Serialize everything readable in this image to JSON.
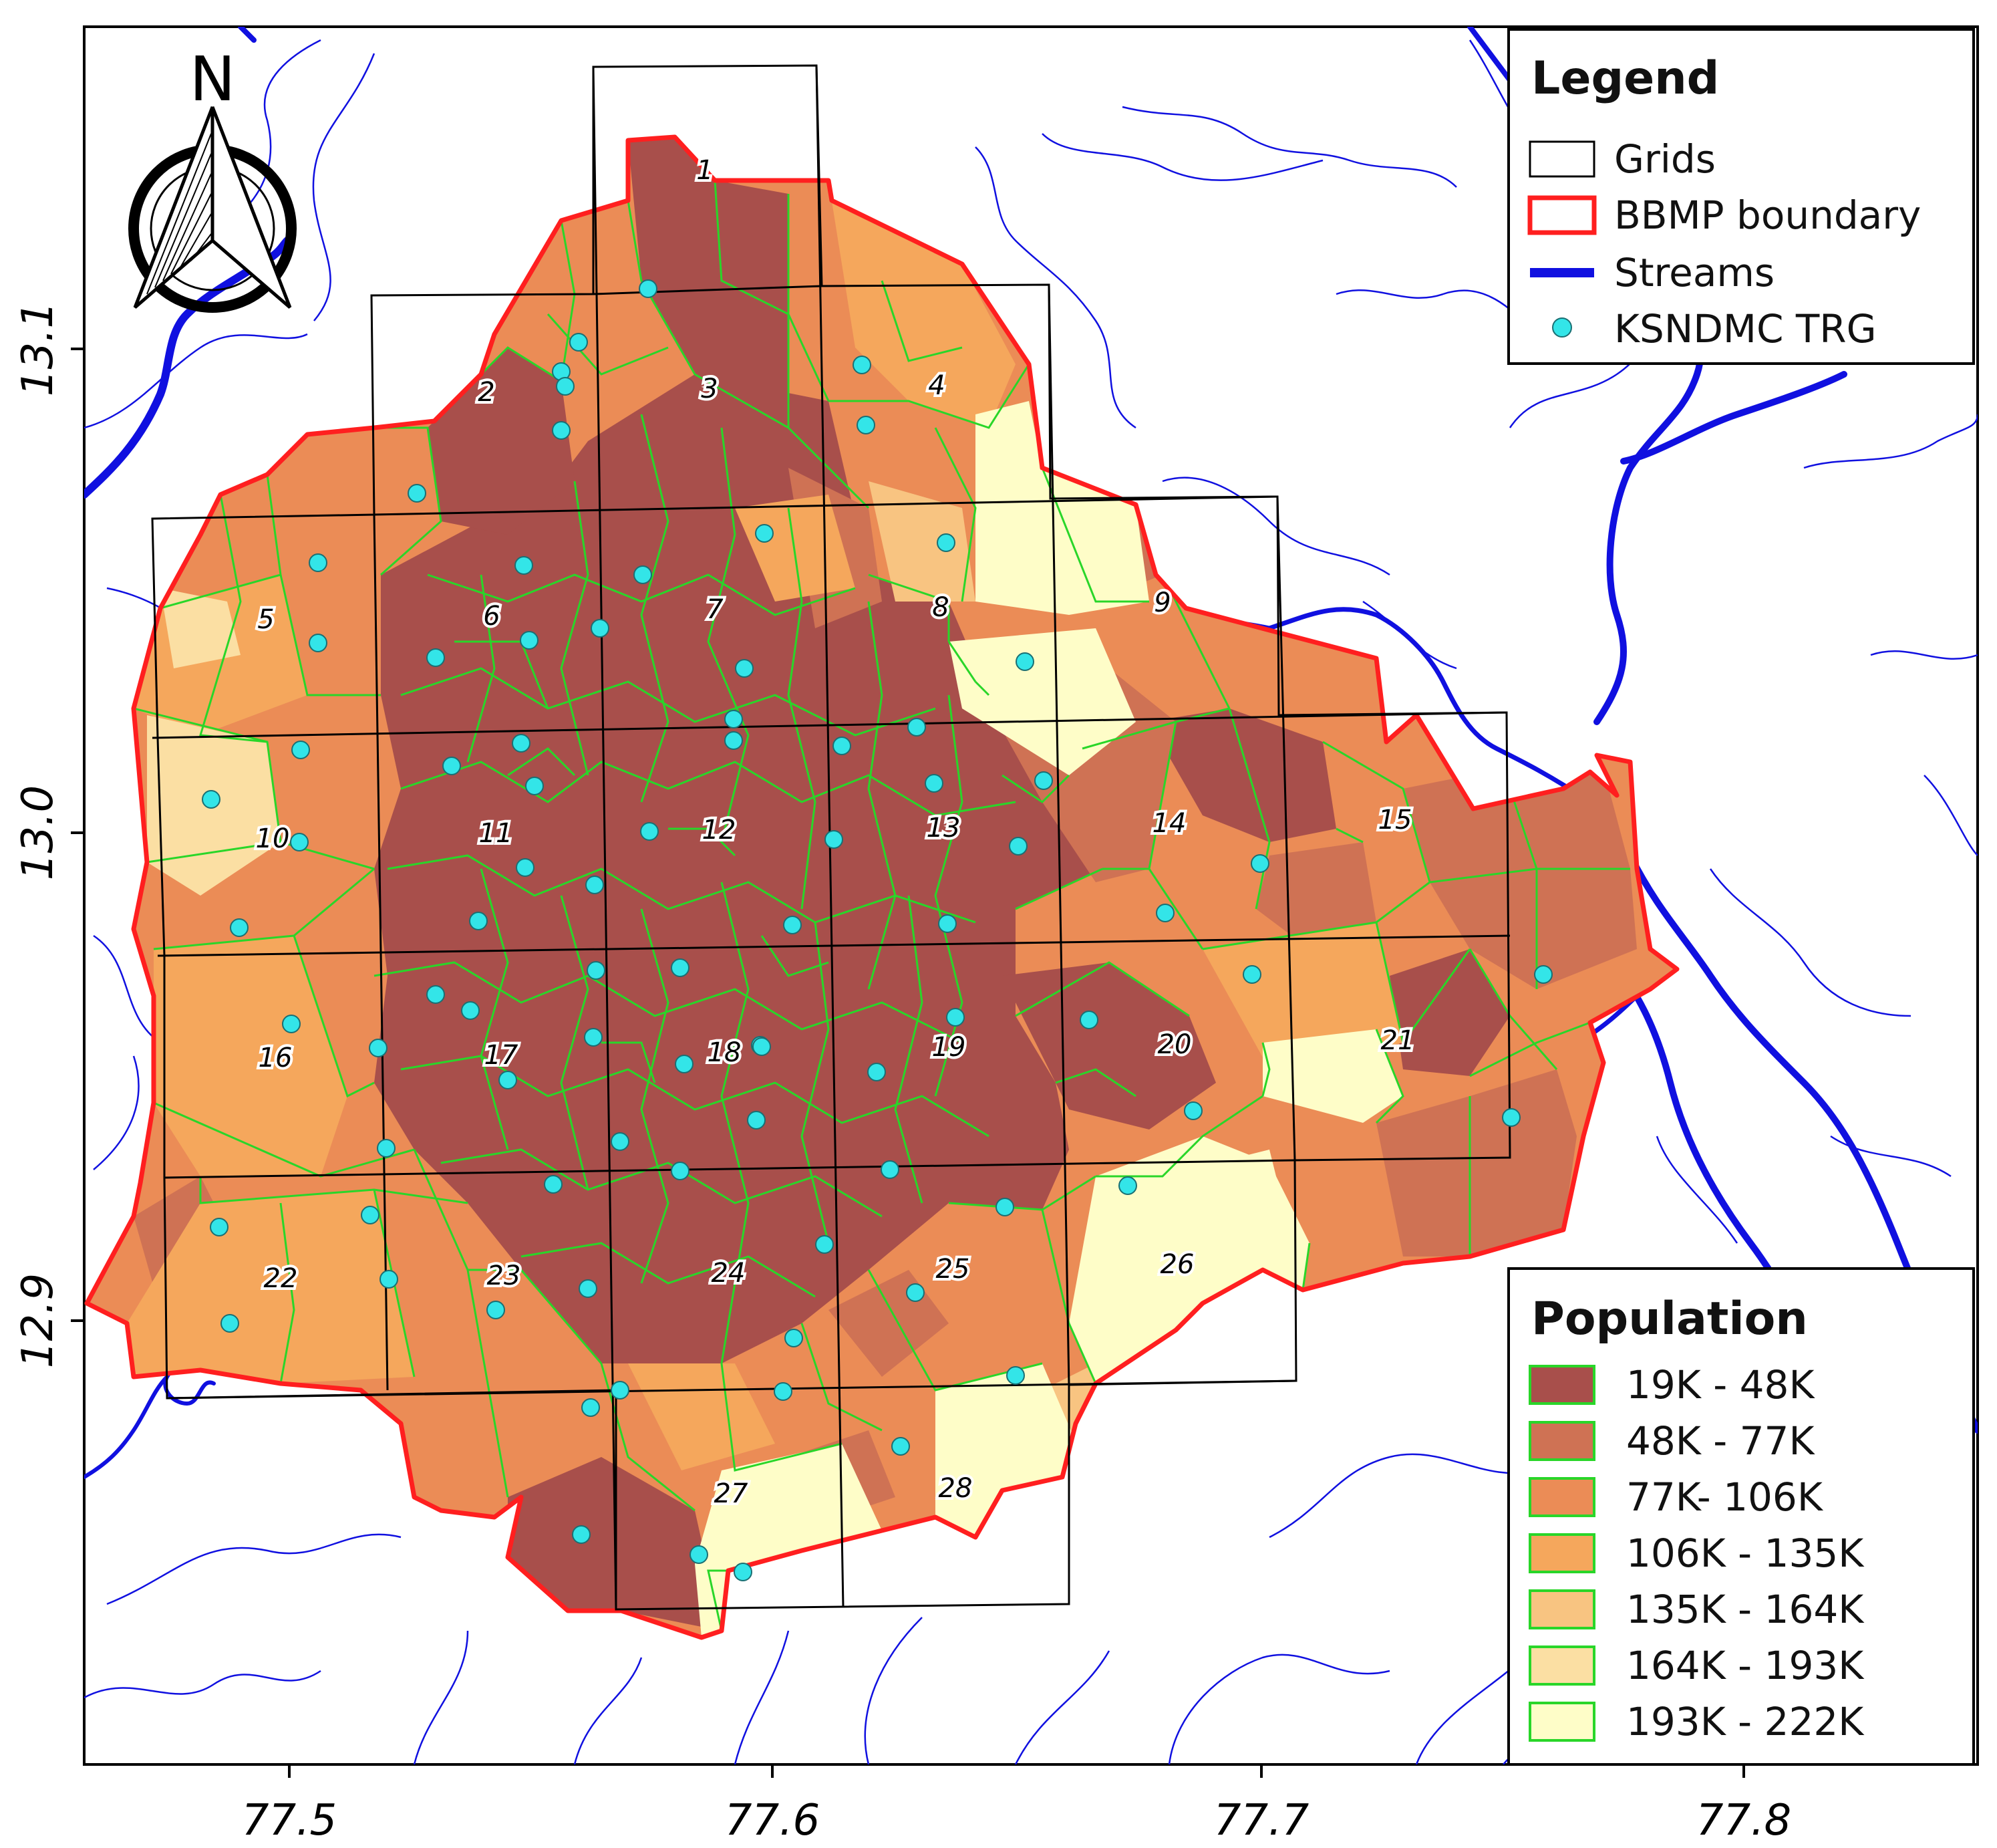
{
  "north_arrow": {
    "label": "N",
    "icon": "north-arrow-icon"
  },
  "axes": {
    "x_ticks": [
      "77.5",
      "77.6",
      "77.7",
      "77.8"
    ],
    "y_ticks": [
      "13.1",
      "13.0",
      "12.9"
    ]
  },
  "legend": {
    "title": "Legend",
    "items": [
      {
        "label": "Grids",
        "icon": "grid-box-icon",
        "color": "#000000"
      },
      {
        "label": "BBMP boundary",
        "icon": "boundary-box-icon",
        "color": "#ff1f1f"
      },
      {
        "label": "Streams",
        "icon": "stream-line-icon",
        "color": "#1010e0"
      },
      {
        "label": "KSNDMC TRG",
        "icon": "rain-gauge-dot-icon",
        "color": "#33e5e8"
      }
    ]
  },
  "population_legend": {
    "title": "Population",
    "classes": [
      {
        "label": "19K - 48K",
        "color": "#a84f4b"
      },
      {
        "label": "48K - 77K",
        "color": "#cf7254"
      },
      {
        "label": "77K- 106K",
        "color": "#eb8c56"
      },
      {
        "label": "106K - 135K",
        "color": "#f5a75c"
      },
      {
        "label": "135K - 164K",
        "color": "#f8c481"
      },
      {
        "label": "164K - 193K",
        "color": "#fbdfa3"
      },
      {
        "label": "193K - 222K",
        "color": "#fefdc8"
      }
    ]
  },
  "grid_numbers": [
    "1",
    "2",
    "3",
    "4",
    "5",
    "6",
    "7",
    "8",
    "9",
    "10",
    "11",
    "12",
    "13",
    "14",
    "15",
    "16",
    "17",
    "18",
    "19",
    "20",
    "21",
    "22",
    "23",
    "24",
    "25",
    "26",
    "27",
    "28"
  ],
  "colors": {
    "ward_border": "#29d629",
    "boundary": "#ff1f1f",
    "stream": "#1010e0",
    "gauge": "#33e5e8"
  }
}
